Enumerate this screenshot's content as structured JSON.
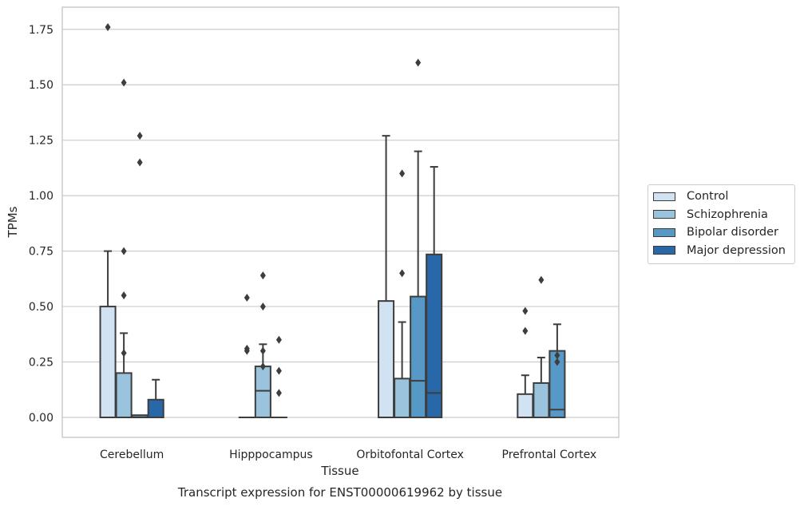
{
  "chart_data": {
    "type": "box",
    "title": "Transcript expression for ENST00000619962 by tissue",
    "xlabel": "Tissue",
    "ylabel": "TPMs",
    "ylim": [
      -0.09,
      1.85
    ],
    "yticks": [
      0.0,
      0.25,
      0.5,
      0.75,
      1.0,
      1.25,
      1.5,
      1.75
    ],
    "ytick_labels": [
      "0.00",
      "0.25",
      "0.50",
      "0.75",
      "1.00",
      "1.25",
      "1.50",
      "1.75"
    ],
    "grid": "horizontal",
    "legend_placement": "right",
    "categories": [
      "Cerebellum",
      "Hipppocampus",
      "Orbitofontal Cortex",
      "Prefrontal Cortex"
    ],
    "series": [
      {
        "name": "Control",
        "color": "#d1e2f2",
        "boxes": [
          {
            "whisker_low": 0.0,
            "q1": 0.0,
            "median": 0.0,
            "q3": 0.5,
            "whisker_high": 0.75,
            "outliers": [
              1.76
            ]
          },
          {
            "whisker_low": 0.0,
            "q1": 0.0,
            "median": 0.0,
            "q3": 0.0,
            "whisker_high": 0.0,
            "outliers": [
              0.54,
              0.3,
              0.31
            ]
          },
          {
            "whisker_low": 0.0,
            "q1": 0.0,
            "median": 0.0,
            "q3": 0.525,
            "whisker_high": 1.27,
            "outliers": []
          },
          {
            "whisker_low": 0.0,
            "q1": 0.0,
            "median": 0.0,
            "q3": 0.105,
            "whisker_high": 0.19,
            "outliers": [
              0.48,
              0.39
            ]
          }
        ]
      },
      {
        "name": "Schizophrenia",
        "color": "#9ac4de",
        "boxes": [
          {
            "whisker_low": 0.0,
            "q1": 0.0,
            "median": 0.0,
            "q3": 0.2,
            "whisker_high": 0.38,
            "outliers": [
              1.51,
              0.75,
              0.55,
              0.29
            ]
          },
          {
            "whisker_low": 0.0,
            "q1": 0.0,
            "median": 0.12,
            "q3": 0.23,
            "whisker_high": 0.33,
            "outliers": [
              0.64,
              0.5,
              0.3,
              0.23
            ]
          },
          {
            "whisker_low": 0.0,
            "q1": 0.0,
            "median": 0.0,
            "q3": 0.175,
            "whisker_high": 0.43,
            "outliers": [
              1.1,
              0.65
            ]
          },
          {
            "whisker_low": 0.0,
            "q1": 0.0,
            "median": 0.0,
            "q3": 0.155,
            "whisker_high": 0.27,
            "outliers": [
              0.62
            ]
          }
        ]
      },
      {
        "name": "Bipolar disorder",
        "color": "#5799c6",
        "boxes": [
          {
            "whisker_low": 0.0,
            "q1": 0.0,
            "median": 0.0,
            "q3": 0.01,
            "whisker_high": 0.01,
            "outliers": [
              1.27,
              1.15
            ]
          },
          {
            "whisker_low": 0.0,
            "q1": 0.0,
            "median": 0.0,
            "q3": 0.0,
            "whisker_high": 0.0,
            "outliers": [
              0.35,
              0.21,
              0.11
            ]
          },
          {
            "whisker_low": 0.0,
            "q1": 0.0,
            "median": 0.165,
            "q3": 0.545,
            "whisker_high": 1.2,
            "outliers": [
              1.6
            ]
          },
          {
            "whisker_low": 0.0,
            "q1": 0.0,
            "median": 0.035,
            "q3": 0.3,
            "whisker_high": 0.42,
            "outliers": [
              0.28,
              0.25
            ]
          }
        ]
      },
      {
        "name": "Major depression",
        "color": "#2868a8",
        "boxes": [
          {
            "whisker_low": 0.0,
            "q1": 0.0,
            "median": 0.0,
            "q3": 0.08,
            "whisker_high": 0.17,
            "outliers": []
          },
          null,
          {
            "whisker_low": 0.0,
            "q1": 0.0,
            "median": 0.11,
            "q3": 0.735,
            "whisker_high": 1.13,
            "outliers": []
          },
          null
        ]
      }
    ]
  }
}
